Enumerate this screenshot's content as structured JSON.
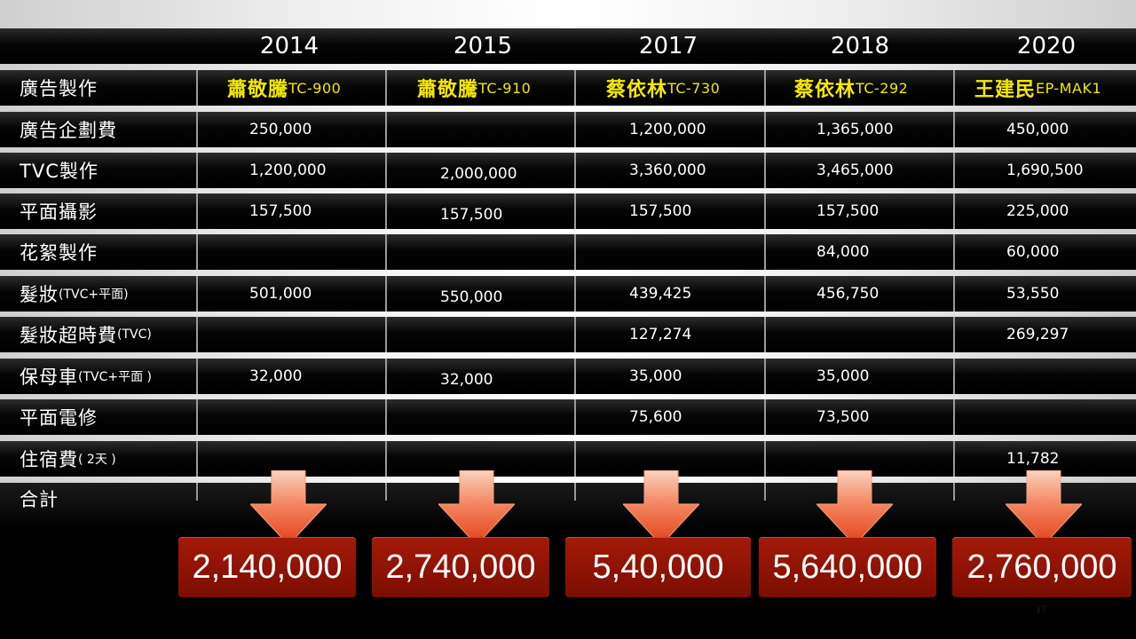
{
  "years": [
    "2014",
    "2015",
    "2017",
    "2018",
    "2020"
  ],
  "header_row": {
    "label": "廣告製作",
    "spokespersons": [
      {
        "name": "蕭敬騰",
        "model": "TC-900"
      },
      {
        "name": "蕭敬騰",
        "model": "TC-910"
      },
      {
        "name": "蔡依林",
        "model": "TC-730"
      },
      {
        "name": "蔡依林",
        "model": "TC-292"
      },
      {
        "name": "王建民",
        "model": "EP-MAK1"
      }
    ]
  },
  "rows": [
    {
      "label": "廣告企劃費",
      "sub": "",
      "values": [
        "250,000",
        "",
        "1,200,000",
        "1,365,000",
        "450,000"
      ]
    },
    {
      "label": "TVC製作",
      "sub": "",
      "values": [
        "1,200,000",
        "2,000,000",
        "3,360,000",
        "3,465,000",
        "1,690,500"
      ]
    },
    {
      "label": "平面攝影",
      "sub": "",
      "values": [
        "157,500",
        "157,500",
        "157,500",
        "157,500",
        "225,000"
      ]
    },
    {
      "label": "花絮製作",
      "sub": "",
      "values": [
        "",
        "",
        "",
        "84,000",
        "60,000"
      ]
    },
    {
      "label": "髮妝",
      "sub": "(TVC+平面)",
      "values": [
        "501,000",
        "550,000",
        "439,425",
        "456,750",
        "53,550"
      ]
    },
    {
      "label": "髮妝超時費",
      "sub": "(TVC)",
      "values": [
        "",
        "",
        "127,274",
        "",
        "269,297"
      ]
    },
    {
      "label": "保母車",
      "sub": "(TVC+平面 )",
      "values": [
        "32,000",
        "32,000",
        "35,000",
        "35,000",
        ""
      ]
    },
    {
      "label": "平面電修",
      "sub": "",
      "values": [
        "",
        "",
        "75,600",
        "73,500",
        ""
      ]
    },
    {
      "label": "住宿費",
      "sub": "( 2天 )",
      "values": [
        "",
        "",
        "",
        "",
        "11,782"
      ]
    }
  ],
  "total": {
    "label": "合計",
    "values": [
      "2,140,000",
      "2,740,000",
      "5,40,000",
      "5,640,000",
      "2,760,000"
    ]
  },
  "page_number": "17",
  "colors": {
    "spokes_text": "#f5e800",
    "total_box": "#8c1205",
    "arrow_top": "#f7b89a",
    "arrow_bottom": "#e8451a"
  }
}
